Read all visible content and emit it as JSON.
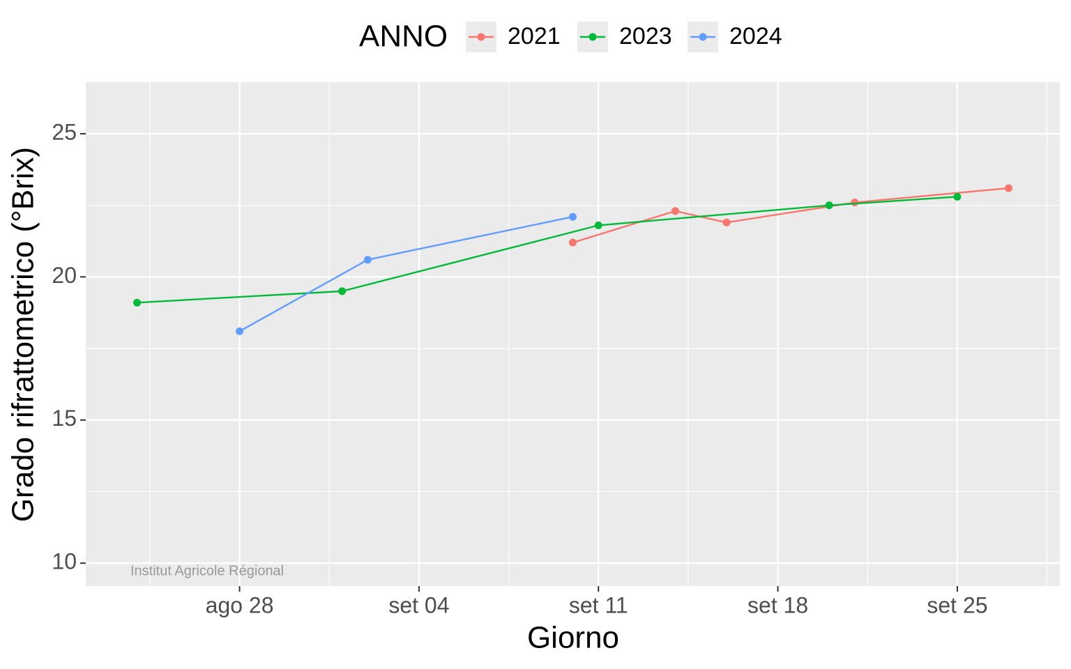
{
  "chart_data": {
    "type": "line",
    "legend_title": "ANNO",
    "x_label": "Giorno",
    "y_label": "Grado rifrattometrico (°Brix)",
    "annotation": "Institut Agricole Régional",
    "legend_position": "top",
    "grid": true,
    "xlim": [
      "08-22",
      "09-29"
    ],
    "xticks": [
      {
        "value": "08-28",
        "label": "ago 28"
      },
      {
        "value": "09-04",
        "label": "set 04"
      },
      {
        "value": "09-11",
        "label": "set 11"
      },
      {
        "value": "09-18",
        "label": "set 18"
      },
      {
        "value": "09-25",
        "label": "set 25"
      }
    ],
    "ylim": [
      9.2,
      26.8
    ],
    "yticks": [
      10,
      15,
      20,
      25
    ],
    "series": [
      {
        "name": "2021",
        "color": "#f8766d",
        "x": [
          "09-10",
          "09-14",
          "09-16",
          "09-21",
          "09-27"
        ],
        "values": [
          21.2,
          22.3,
          21.9,
          22.6,
          23.1
        ]
      },
      {
        "name": "2023",
        "color": "#00ba38",
        "x": [
          "08-24",
          "09-01",
          "09-11",
          "09-20",
          "09-25"
        ],
        "values": [
          19.1,
          19.5,
          21.8,
          22.5,
          22.8
        ]
      },
      {
        "name": "2024",
        "color": "#619cff",
        "x": [
          "08-28",
          "09-02",
          "09-10"
        ],
        "values": [
          18.1,
          20.6,
          22.1
        ]
      }
    ]
  }
}
